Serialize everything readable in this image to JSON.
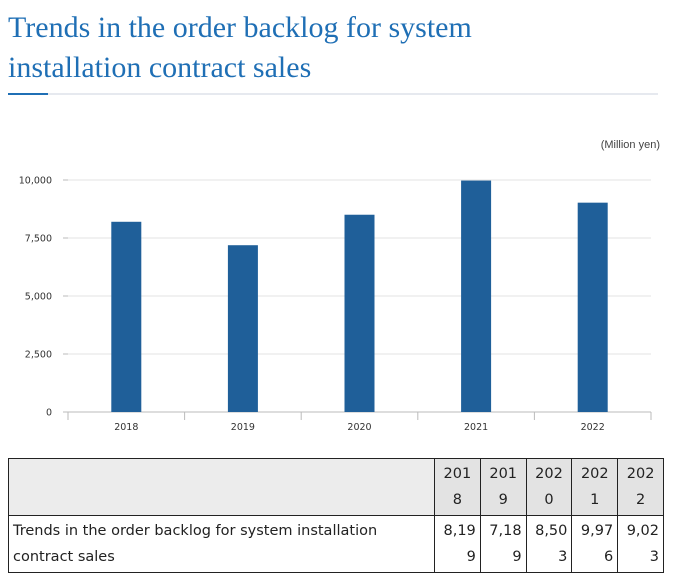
{
  "title": "Trends in the order backlog for system installation contract sales",
  "unit_label": "(Million yen)",
  "colors": {
    "bar": "#1f5f99",
    "title": "#1f6fb5",
    "grid": "#e3e3e3"
  },
  "chart_data": {
    "type": "bar",
    "categories": [
      "2018",
      "2019",
      "2020",
      "2021",
      "2022"
    ],
    "values": [
      8199,
      7189,
      8503,
      9976,
      9023
    ],
    "ylim": [
      0,
      10000
    ],
    "yticks": [
      0,
      2500,
      5000,
      7500,
      10000
    ],
    "ytick_labels": [
      "0",
      "2,500",
      "5,000",
      "7,500",
      "10,000"
    ],
    "grid": true
  },
  "table": {
    "headers": [
      "2018",
      "2019",
      "2020",
      "2021",
      "2022"
    ],
    "row_label": "Trends in the order backlog for system installation contract sales",
    "values": [
      "8,199",
      "7,189",
      "8,503",
      "9,976",
      "9,023"
    ]
  }
}
